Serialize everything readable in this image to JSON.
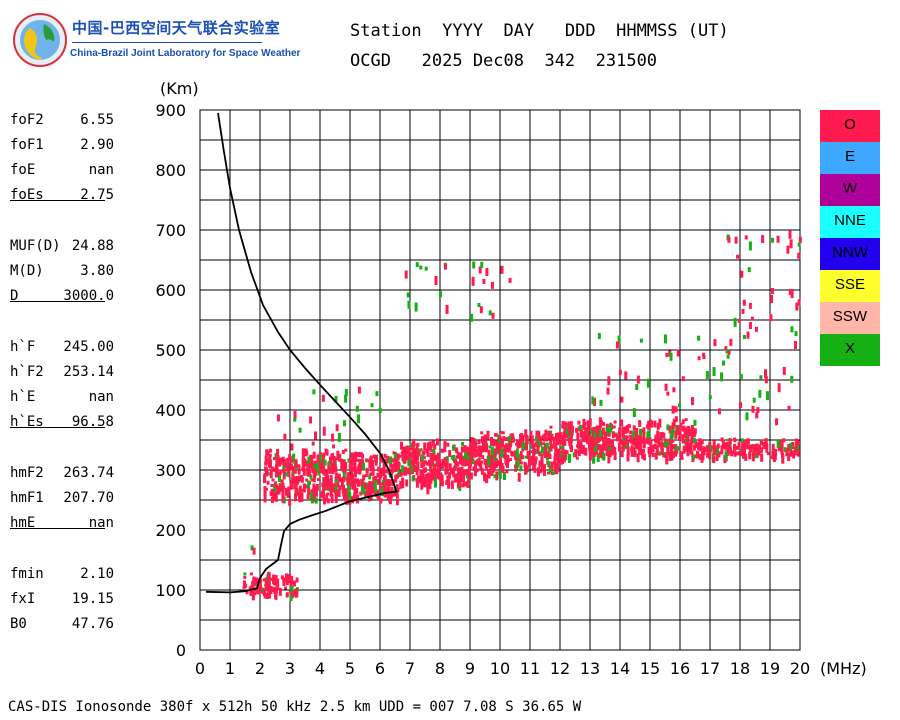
{
  "header": {
    "org_cn": "中国-巴西空间天气联合实验室",
    "org_en": "China-Brazil Joint Laboratory for Space Weather",
    "line1": "Station  YYYY  DAY   DDD  HHMMSS (UT)",
    "line2": "OCGD   2025 Dec08  342  231500"
  },
  "params": [
    {
      "label": "foF2",
      "value": "6.55"
    },
    {
      "label": "foF1",
      "value": "2.90"
    },
    {
      "label": "foE",
      "value": "nan"
    },
    {
      "label": "foEs",
      "value": "2.75"
    },
    {
      "sep": true
    },
    {
      "label": "MUF(D)",
      "value": "24.88"
    },
    {
      "label": "M(D)",
      "value": "3.80"
    },
    {
      "label": "D",
      "value": "3000.0"
    },
    {
      "sep": true
    },
    {
      "label": "h`F",
      "value": "245.00"
    },
    {
      "label": "h`F2",
      "value": "253.14"
    },
    {
      "label": "h`E",
      "value": "nan"
    },
    {
      "label": "h`Es",
      "value": "96.58"
    },
    {
      "sep": true
    },
    {
      "label": "hmF2",
      "value": "263.74"
    },
    {
      "label": "hmF1",
      "value": "207.70"
    },
    {
      "label": "hmE",
      "value": "nan"
    },
    {
      "sep": true
    },
    {
      "label": "fmin",
      "value": "2.10"
    },
    {
      "label": "fxI",
      "value": "19.15"
    },
    {
      "label": "B0",
      "value": "47.76"
    }
  ],
  "legend": [
    {
      "label": "O",
      "color": "#ff1a4f",
      "text_color": "#000000"
    },
    {
      "label": "E",
      "color": "#3ea8ff",
      "text_color": "#000000"
    },
    {
      "label": "W",
      "color": "#b0009a",
      "text_color": "#000000"
    },
    {
      "label": "NNE",
      "color": "#1affff",
      "text_color": "#000000"
    },
    {
      "label": "NNW",
      "color": "#2200ee",
      "text_color": "#000000"
    },
    {
      "label": "SSE",
      "color": "#ffff2e",
      "text_color": "#000000"
    },
    {
      "label": "SSW",
      "color": "#ffb6a8",
      "text_color": "#000000"
    },
    {
      "label": "X",
      "color": "#14b014",
      "text_color": "#000000"
    }
  ],
  "footer": "CAS-DIS Ionosonde 380f x 512h 50 kHz 2.5 km UDD = 007 7.08 S 36.65 W",
  "chart_data": {
    "type": "scatter",
    "xlabel": "(MHz)",
    "ylabel": "(Km)",
    "xlim": [
      0,
      20
    ],
    "ylim": [
      0,
      900
    ],
    "xticks": [
      0,
      1,
      2,
      3,
      4,
      5,
      6,
      7,
      8,
      9,
      10,
      11,
      12,
      13,
      14,
      15,
      16,
      17,
      18,
      19,
      20
    ],
    "yticks": [
      0,
      100,
      200,
      300,
      400,
      500,
      600,
      700,
      800,
      900
    ],
    "grid": true,
    "colors": {
      "O": "#ff1a4f",
      "X": "#14b014"
    },
    "profile": [
      [
        0.6,
        895
      ],
      [
        0.8,
        830
      ],
      [
        1.0,
        770
      ],
      [
        1.3,
        700
      ],
      [
        1.7,
        630
      ],
      [
        2.1,
        575
      ],
      [
        2.6,
        530
      ],
      [
        3.0,
        500
      ],
      [
        3.5,
        470
      ],
      [
        4.0,
        442
      ],
      [
        4.5,
        415
      ],
      [
        5.0,
        388
      ],
      [
        5.5,
        360
      ],
      [
        6.0,
        328
      ],
      [
        6.3,
        300
      ],
      [
        6.55,
        264
      ],
      [
        6.2,
        262
      ],
      [
        5.6,
        255
      ],
      [
        5.0,
        248
      ],
      [
        4.6,
        240
      ],
      [
        4.2,
        232
      ],
      [
        3.7,
        224
      ],
      [
        3.3,
        217
      ],
      [
        3.0,
        210
      ],
      [
        2.8,
        198
      ],
      [
        2.7,
        175
      ],
      [
        2.6,
        150
      ],
      [
        2.2,
        135
      ],
      [
        2.0,
        120
      ],
      [
        1.9,
        103
      ],
      [
        1.5,
        98
      ],
      [
        1.0,
        96
      ],
      [
        0.2,
        97
      ]
    ],
    "trace_bands": [
      {
        "x0": 2.1,
        "x1": 6.6,
        "y0": 248,
        "y1": 340
      },
      {
        "x0": 6.6,
        "x1": 9.0,
        "y0": 270,
        "y1": 355
      },
      {
        "x0": 9.0,
        "x1": 12.0,
        "y0": 290,
        "y1": 375
      },
      {
        "x0": 12.0,
        "x1": 16.5,
        "y0": 318,
        "y1": 390
      },
      {
        "x0": 16.5,
        "x1": 19.9,
        "y0": 322,
        "y1": 356
      },
      {
        "x0": 1.4,
        "x1": 3.2,
        "y0": 92,
        "y1": 135
      }
    ],
    "scatter_regions": [
      {
        "x0": 2.3,
        "x1": 6.0,
        "y0": 340,
        "y1": 440
      },
      {
        "x0": 6.8,
        "x1": 10.5,
        "y0": 560,
        "y1": 660
      },
      {
        "x0": 13.0,
        "x1": 17.5,
        "y0": 400,
        "y1": 530
      },
      {
        "x0": 17.5,
        "x1": 20.0,
        "y0": 380,
        "y1": 720
      },
      {
        "x0": 1.2,
        "x1": 1.8,
        "y0": 170,
        "y1": 210
      }
    ]
  }
}
